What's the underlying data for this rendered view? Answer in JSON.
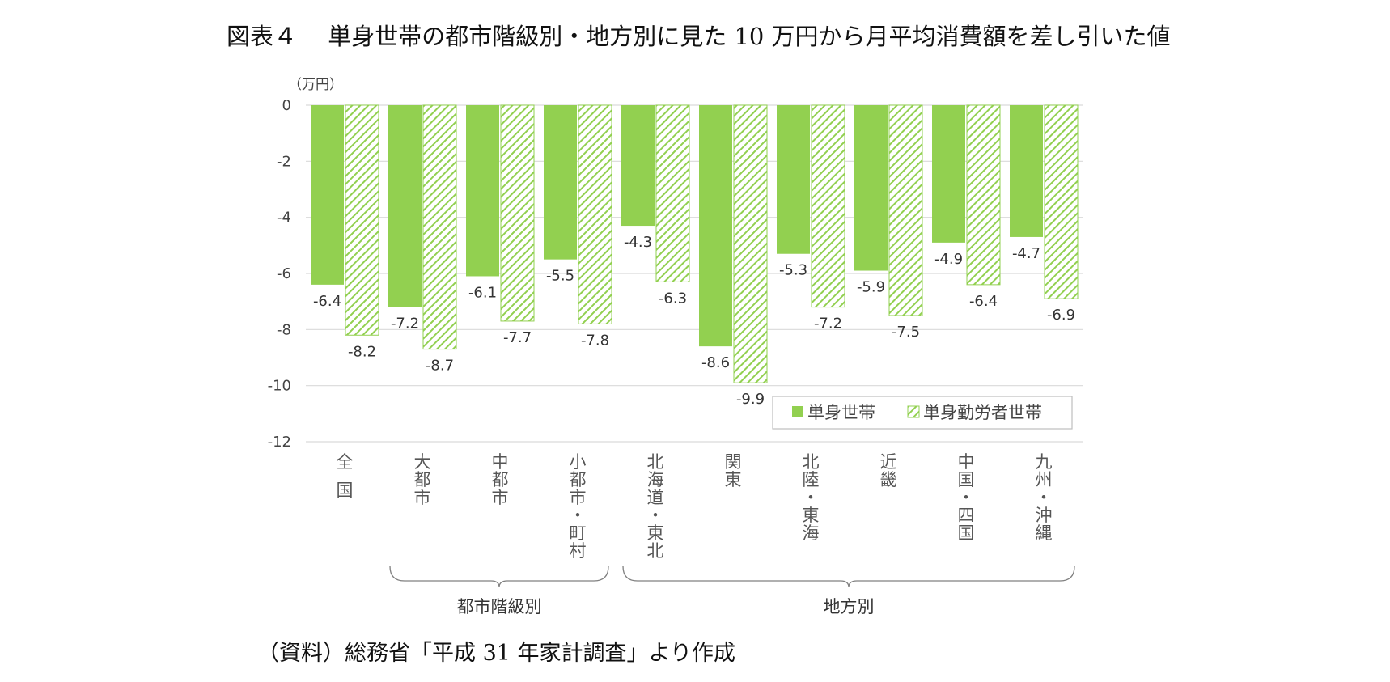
{
  "title": "図表４　 単身世帯の都市階級別・地方別に見た 10 万円から月平均消費額を差し引いた値",
  "source": "（資料）総務省「平成 31 年家計調査」より作成",
  "colors": {
    "solid": "#92D050",
    "hatch": "#92D050",
    "axis": "#d9d9d9",
    "text": "#444444"
  },
  "chart_data": {
    "type": "bar",
    "unit_label": "（万円）",
    "ylim": [
      -12,
      0
    ],
    "yticks": [
      0,
      -2,
      -4,
      -6,
      -8,
      -10,
      -12
    ],
    "ytick_labels": [
      "0",
      "-2",
      "-4",
      "-6",
      "-8",
      "-10",
      "-12"
    ],
    "grid": true,
    "legend_position": "bottom-right",
    "categories": [
      [
        "全",
        "国"
      ],
      [
        "大",
        "都",
        "市"
      ],
      [
        "中",
        "都",
        "市"
      ],
      [
        "小",
        "都",
        "市",
        "・",
        "町",
        "村"
      ],
      [
        "北",
        "海",
        "道",
        "・",
        "東",
        "北"
      ],
      [
        "関",
        "東"
      ],
      [
        "北",
        "陸",
        "・",
        "東",
        "海"
      ],
      [
        "近",
        "畿"
      ],
      [
        "中",
        "国",
        "・",
        "四",
        "国"
      ],
      [
        "九",
        "州",
        "・",
        "沖",
        "縄"
      ]
    ],
    "series": [
      {
        "name": "単身世帯",
        "style": "solid",
        "values": [
          -6.4,
          -7.2,
          -6.1,
          -5.5,
          -4.3,
          -8.6,
          -5.3,
          -5.9,
          -4.9,
          -4.7
        ],
        "labels": [
          "-6.4",
          "-7.2",
          "-6.1",
          "-5.5",
          "-4.3",
          "-8.6",
          "-5.3",
          "-5.9",
          "-4.9",
          "-4.7"
        ]
      },
      {
        "name": "単身勤労者世帯",
        "style": "hatched",
        "values": [
          -8.2,
          -8.7,
          -7.7,
          -7.8,
          -6.3,
          -9.9,
          -7.2,
          -7.5,
          -6.4,
          -6.9
        ],
        "labels": [
          "-8.2",
          "-8.7",
          "-7.7",
          "-7.8",
          "-6.3",
          "-9.9",
          "-7.2",
          "-7.5",
          "-6.4",
          "-6.9"
        ]
      }
    ],
    "groups": [
      {
        "label": "都市階級別",
        "from": 1,
        "to": 3
      },
      {
        "label": "地方別",
        "from": 4,
        "to": 9
      }
    ]
  }
}
